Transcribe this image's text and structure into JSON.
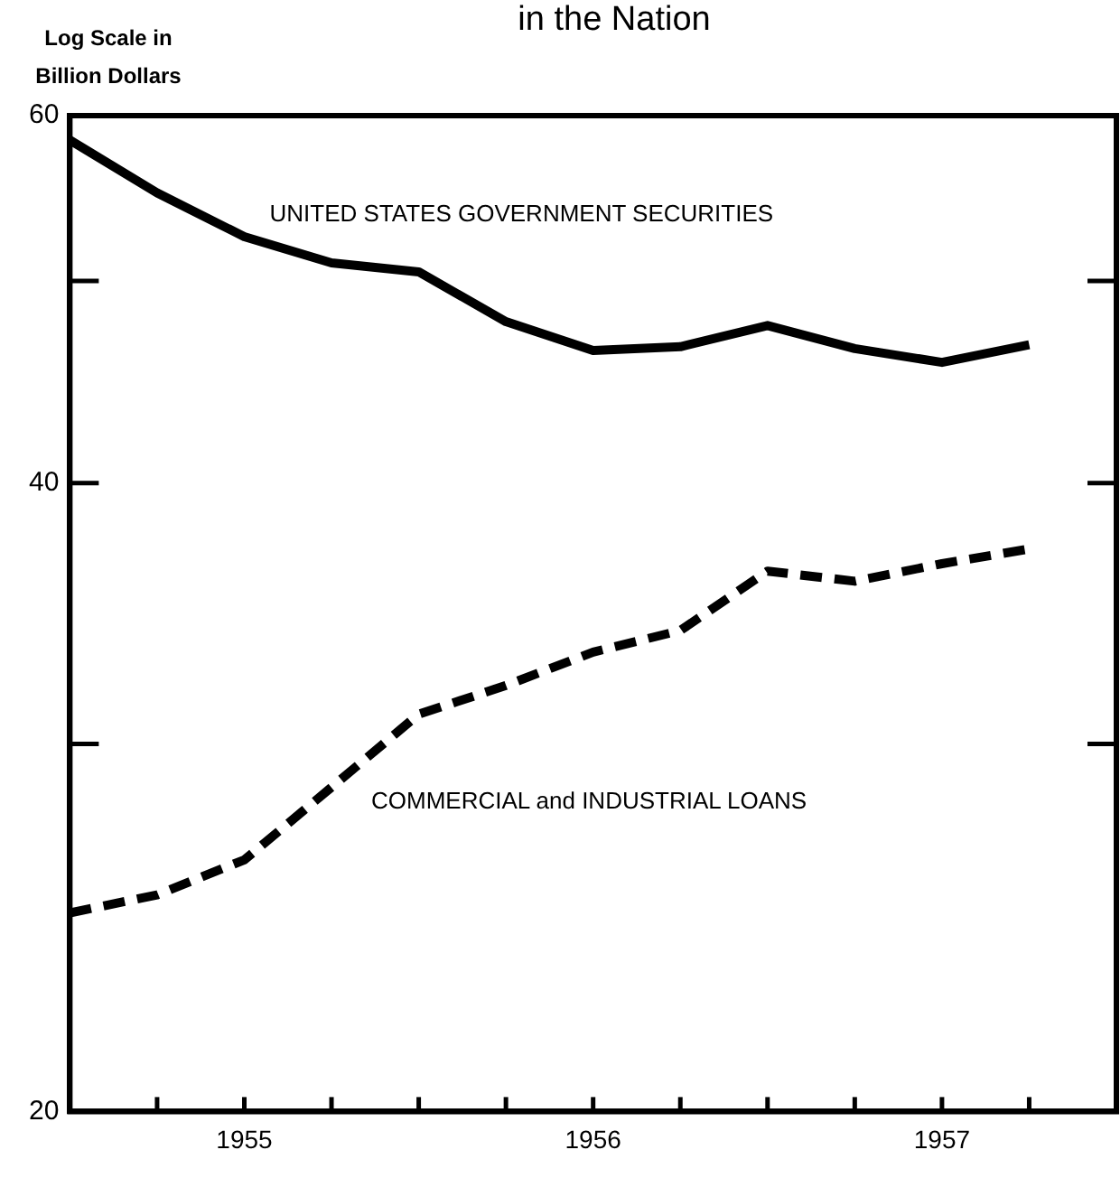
{
  "chart_data": {
    "type": "line",
    "title": "in the Nation",
    "ylabel": "Log Scale in Billion Dollars",
    "log": true,
    "grid": false,
    "legend": false,
    "marker": "none",
    "x": [
      1954.5,
      1954.75,
      1955,
      1955.25,
      1955.5,
      1955.75,
      1956,
      1956.25,
      1956.5,
      1956.75,
      1957,
      1957.25
    ],
    "series": [
      {
        "name": "UNITED STATES GOVERNMENT SECURITIES",
        "color": "#000000",
        "line_style": "solid",
        "values": [
          58.4,
          55.1,
          52.5,
          51.0,
          50.5,
          47.8,
          46.3,
          46.5,
          47.6,
          46.4,
          45.7,
          46.6
        ]
      },
      {
        "name": "COMMERCIAL and INDUSTRIAL LOANS",
        "color": "#000000",
        "line_style": "dashed",
        "values": [
          24.9,
          25.4,
          26.4,
          28.6,
          31.0,
          32.0,
          33.2,
          34.0,
          36.3,
          35.9,
          36.6,
          37.2
        ]
      }
    ],
    "xlim": [
      1954.5,
      1957.5
    ],
    "xticks": [
      {
        "value": 1954.75,
        "label": null
      },
      1955,
      {
        "value": 1955.25,
        "label": null
      },
      {
        "value": 1955.5,
        "label": null
      },
      {
        "value": 1955.75,
        "label": null
      },
      1956,
      {
        "value": 1956.25,
        "label": null
      },
      {
        "value": 1956.5,
        "label": null
      },
      {
        "value": 1956.75,
        "label": null
      },
      1957,
      {
        "value": 1957.25,
        "label": null
      }
    ],
    "ylim": [
      20,
      60
    ],
    "yticks": [
      20,
      {
        "value": 30,
        "label": null
      },
      40,
      {
        "value": 50,
        "label": null
      },
      60
    ]
  }
}
